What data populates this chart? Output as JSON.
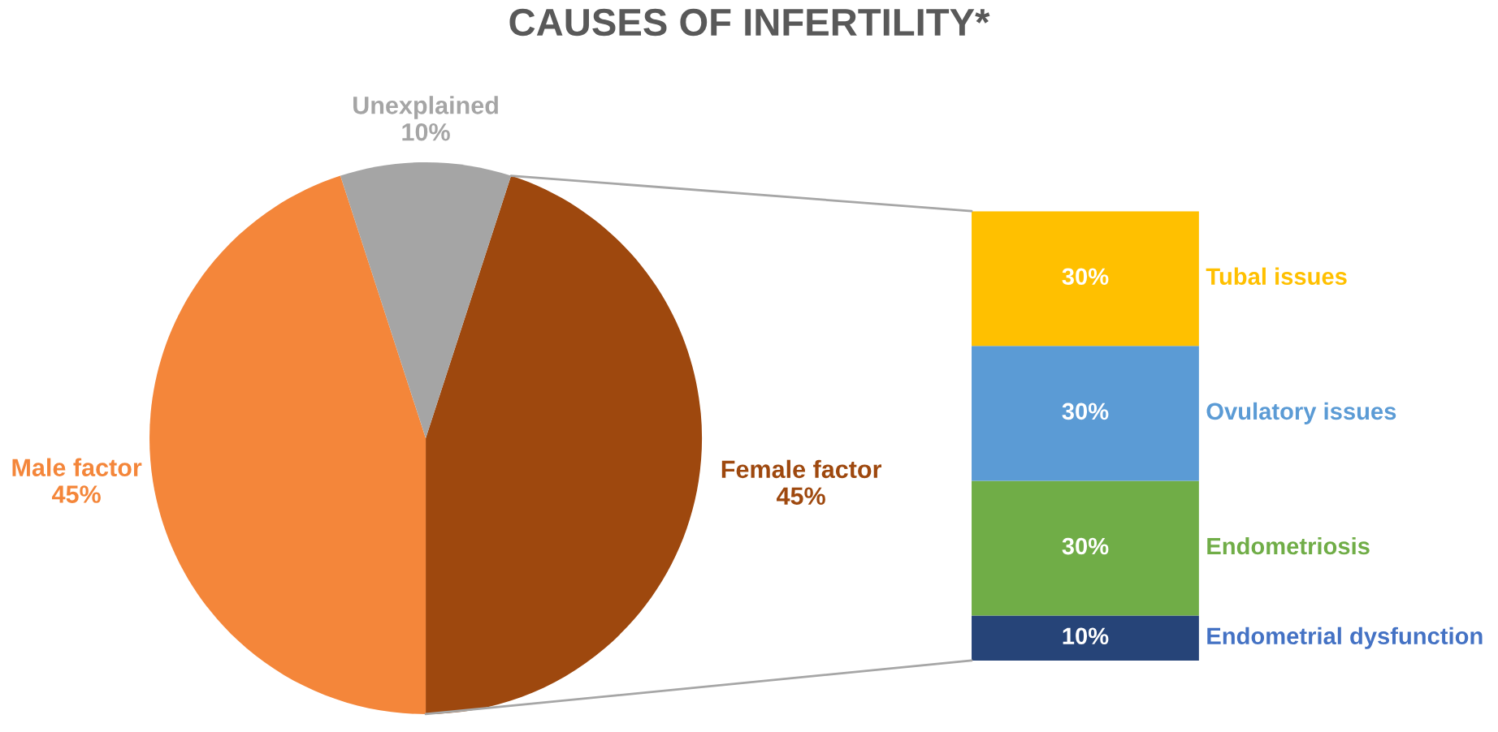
{
  "chart_data": [
    {
      "type": "pie",
      "title": "CAUSES OF INFERTILITY*",
      "categories": [
        "Female factor",
        "Male factor",
        "Unexplained"
      ],
      "values": [
        45,
        45,
        10
      ],
      "colors": [
        "#9e480e",
        "#f4863a",
        "#a5a5a5"
      ],
      "value_labels": [
        "45%",
        "45%",
        "10%"
      ],
      "legend": false
    },
    {
      "type": "bar",
      "stacked": true,
      "categories": [
        null
      ],
      "legend": false,
      "series": [
        {
          "name": "Endometrial dysfunction",
          "color": "#264478",
          "values": [
            10
          ],
          "value_labels": [
            "10%"
          ]
        },
        {
          "name": "Endometriosis",
          "color": "#70ad47",
          "values": [
            30
          ],
          "value_labels": [
            "30%"
          ]
        },
        {
          "name": "Ovulatory issues",
          "color": "#5b9bd5",
          "values": [
            30
          ],
          "value_labels": [
            "30%"
          ]
        },
        {
          "name": "Tubal issues",
          "color": "#ffc000",
          "values": [
            30
          ],
          "value_labels": [
            "30%"
          ]
        }
      ]
    }
  ]
}
